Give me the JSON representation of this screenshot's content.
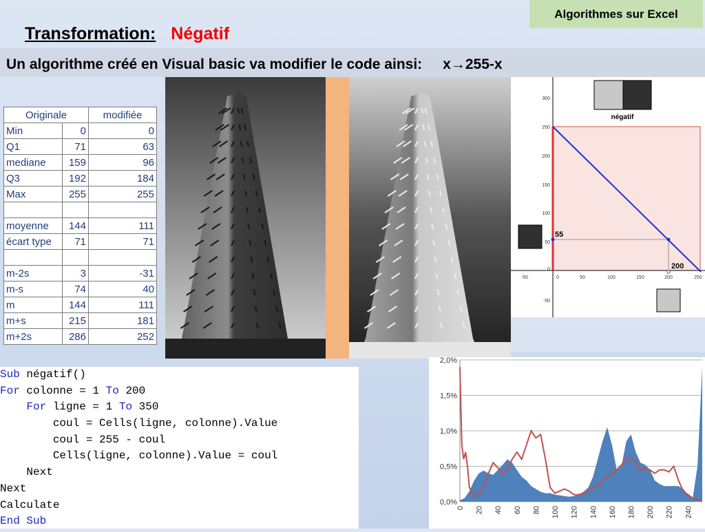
{
  "tag": "Algorithmes sur Excel",
  "title": {
    "label": "Transformation:",
    "name": "Négatif"
  },
  "subtitle": {
    "text": "Un algorithme créé en Visual basic va modifier le code ainsi:",
    "formula": "x→255-x"
  },
  "table": {
    "headers": [
      "Originale",
      "modifiée"
    ],
    "rows": [
      {
        "label": "Min",
        "orig": "0",
        "mod": "0"
      },
      {
        "label": "Q1",
        "orig": "71",
        "mod": "63"
      },
      {
        "label": "mediane",
        "orig": "159",
        "mod": "96"
      },
      {
        "label": "Q3",
        "orig": "192",
        "mod": "184"
      },
      {
        "label": "Max",
        "orig": "255",
        "mod": "255"
      },
      {
        "label": "",
        "orig": "",
        "mod": ""
      },
      {
        "label": "moyenne",
        "orig": "144",
        "mod": "111"
      },
      {
        "label": "écart type",
        "orig": "71",
        "mod": "71"
      },
      {
        "label": "",
        "orig": "",
        "mod": ""
      },
      {
        "label": "m-2s",
        "orig": "3",
        "mod": "-31"
      },
      {
        "label": "m-s",
        "orig": "74",
        "mod": "40"
      },
      {
        "label": "m",
        "orig": "144",
        "mod": "111"
      },
      {
        "label": "m+s",
        "orig": "215",
        "mod": "181"
      },
      {
        "label": "m+2s",
        "orig": "286",
        "mod": "252"
      }
    ]
  },
  "graph": {
    "legend_label": "négatif",
    "point_in": "55",
    "point_out": "200",
    "x_ticks": [
      "-50",
      "0",
      "50",
      "100",
      "150",
      "200",
      "250"
    ],
    "y_ticks": [
      "300",
      "250",
      "200",
      "150",
      "100",
      "50",
      "0",
      "-50"
    ]
  },
  "code": [
    "Sub négatif()",
    "For colonne = 1 To 200",
    "    For ligne = 1 To 350",
    "        coul = Cells(ligne, colonne).Value",
    "        coul = 255 - coul",
    "        Cells(ligne, colonne).Value = coul",
    "    Next",
    "Next",
    "Calculate",
    "End Sub"
  ],
  "chart_data": {
    "type": "area",
    "title": "",
    "xlabel": "",
    "ylabel": "",
    "x_ticks": [
      "0",
      "20",
      "40",
      "60",
      "80",
      "100",
      "120",
      "140",
      "160",
      "180",
      "200",
      "220",
      "240"
    ],
    "y_ticks": [
      "2,0%",
      "1,5%",
      "1,0%",
      "0,5%",
      "0,0%"
    ],
    "xlim": [
      0,
      255
    ],
    "ylim": [
      0,
      2.0
    ],
    "series": [
      {
        "name": "",
        "type": "area",
        "color": "#4f81bd",
        "x": [
          0,
          5,
          10,
          15,
          20,
          25,
          30,
          35,
          40,
          45,
          50,
          55,
          60,
          65,
          70,
          75,
          80,
          85,
          90,
          95,
          100,
          105,
          110,
          115,
          120,
          125,
          130,
          135,
          140,
          145,
          150,
          155,
          160,
          165,
          170,
          175,
          180,
          185,
          190,
          195,
          200,
          205,
          210,
          215,
          220,
          225,
          230,
          235,
          240,
          245,
          250,
          255
        ],
        "y": [
          0.02,
          0.05,
          0.15,
          0.3,
          0.4,
          0.44,
          0.4,
          0.38,
          0.45,
          0.52,
          0.6,
          0.55,
          0.45,
          0.35,
          0.3,
          0.22,
          0.18,
          0.14,
          0.12,
          0.12,
          0.1,
          0.09,
          0.08,
          0.07,
          0.08,
          0.1,
          0.14,
          0.2,
          0.35,
          0.6,
          0.85,
          1.05,
          0.8,
          0.45,
          0.5,
          0.85,
          0.95,
          0.7,
          0.55,
          0.52,
          0.45,
          0.3,
          0.25,
          0.22,
          0.22,
          0.22,
          0.22,
          0.18,
          0.1,
          0.05,
          0.5,
          1.9
        ]
      },
      {
        "name": "",
        "type": "line",
        "color": "#c0504d",
        "x": [
          0,
          2,
          4,
          6,
          8,
          10,
          15,
          20,
          25,
          30,
          35,
          40,
          45,
          50,
          55,
          60,
          65,
          70,
          75,
          80,
          85,
          90,
          95,
          100,
          105,
          110,
          115,
          120,
          125,
          130,
          135,
          140,
          145,
          150,
          155,
          160,
          165,
          170,
          175,
          180,
          185,
          190,
          195,
          200,
          205,
          210,
          215,
          220,
          225,
          230,
          235,
          240,
          245,
          250,
          255
        ],
        "y": [
          1.9,
          0.8,
          0.6,
          0.7,
          0.5,
          0.2,
          0.08,
          0.1,
          0.2,
          0.4,
          0.55,
          0.48,
          0.4,
          0.45,
          0.6,
          0.7,
          0.6,
          0.8,
          1.0,
          0.9,
          0.95,
          0.6,
          0.2,
          0.12,
          0.15,
          0.18,
          0.15,
          0.1,
          0.1,
          0.12,
          0.15,
          0.2,
          0.22,
          0.3,
          0.35,
          0.4,
          0.45,
          0.52,
          0.6,
          0.62,
          0.55,
          0.45,
          0.48,
          0.45,
          0.4,
          0.45,
          0.45,
          0.42,
          0.5,
          0.3,
          0.15,
          0.1,
          0.05,
          0.03,
          0.02
        ]
      }
    ]
  }
}
